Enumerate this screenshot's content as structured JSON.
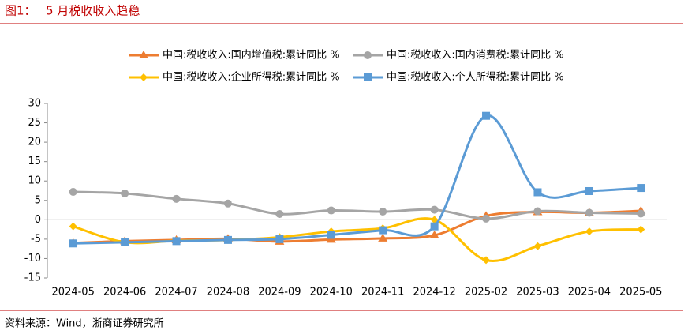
{
  "figure_label": "图1：",
  "source": "资料来源：Wind，浙商证券研究所",
  "chart_data": {
    "type": "line",
    "title": "5 月税收收入趋稳",
    "categories": [
      "2024-05",
      "2024-06",
      "2024-07",
      "2024-08",
      "2024-09",
      "2024-10",
      "2024-11",
      "2024-12",
      "2025-02",
      "2025-03",
      "2025-04",
      "2025-05"
    ],
    "series": [
      {
        "name": "中国:税收收入:国内增值税:累计同比 %",
        "color": "#ed7d31",
        "marker": "triangle",
        "values": [
          -6,
          -5.5,
          -5.2,
          -4.9,
          -5.6,
          -5.1,
          -4.8,
          -4.0,
          1.0,
          2.0,
          1.8,
          2.3
        ]
      },
      {
        "name": "中国:税收收入:国内消费税:累计同比 %",
        "color": "#a5a5a5",
        "marker": "circle",
        "values": [
          7.2,
          6.8,
          5.4,
          4.2,
          1.5,
          2.4,
          2.1,
          2.6,
          0.3,
          2.2,
          1.8,
          1.6
        ]
      },
      {
        "name": "中国:税收收入:企业所得税:累计同比 %",
        "color": "#ffc000",
        "marker": "diamond",
        "values": [
          -1.7,
          -5.8,
          -5.4,
          -5.2,
          -4.5,
          -3.0,
          -2.2,
          0.0,
          -10.4,
          -6.8,
          -3.0,
          -2.5
        ]
      },
      {
        "name": "中国:税收收入:个人所得税:累计同比 %",
        "color": "#5b9bd5",
        "marker": "square",
        "values": [
          -6.1,
          -5.8,
          -5.5,
          -5.2,
          -5.0,
          -3.9,
          -2.7,
          -1.7,
          26.8,
          7.1,
          7.4,
          8.2
        ]
      }
    ],
    "ylim": [
      -15,
      30
    ],
    "yticks": [
      -15,
      -10,
      -5,
      0,
      5,
      10,
      15,
      20,
      25,
      30
    ],
    "grid": false
  }
}
